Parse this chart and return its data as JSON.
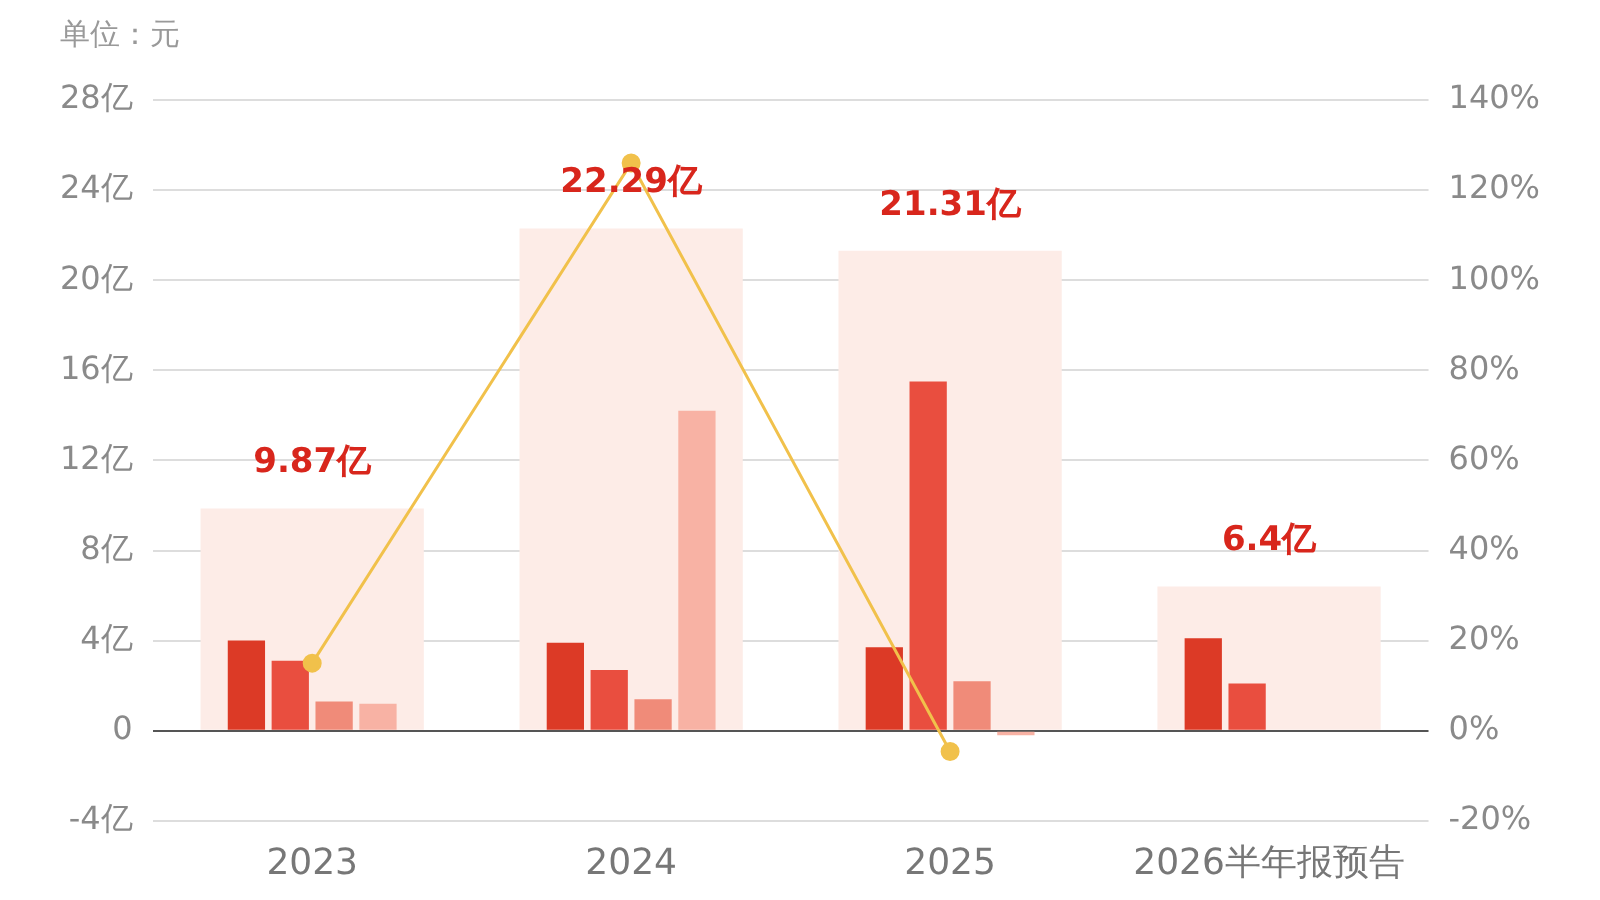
{
  "chart_data": {
    "type": "bar",
    "categories": [
      "2023",
      "2024",
      "2025",
      "2026半年报预告"
    ],
    "series": [
      {
        "color": "#fdece7",
        "values": [
          9.87,
          22.29,
          21.31,
          6.4
        ],
        "value_labels": [
          "9.87亿",
          "22.29亿",
          "21.31亿",
          "6.4亿"
        ]
      },
      {
        "color": "#dc3a26",
        "values": [
          4.0,
          3.9,
          3.7,
          4.1
        ]
      },
      {
        "color": "#e94e3f",
        "values": [
          3.1,
          2.7,
          15.5,
          2.1
        ]
      },
      {
        "color": "#f08b79",
        "values": [
          1.3,
          1.4,
          2.2,
          null
        ]
      },
      {
        "color": "#f8b2a4",
        "values": [
          1.2,
          14.2,
          -0.2,
          null
        ]
      },
      {
        "type": "line",
        "axis": "y2",
        "color": "#f1c14b",
        "values": [
          15,
          126,
          -4.6,
          null
        ]
      }
    ],
    "ylim": [
      -4,
      28
    ],
    "yticks": [
      {
        "value": -4,
        "label": "-4亿"
      },
      {
        "value": 0,
        "label": "0"
      },
      {
        "value": 4,
        "label": "4亿"
      },
      {
        "value": 8,
        "label": "8亿"
      },
      {
        "value": 12,
        "label": "12亿"
      },
      {
        "value": 16,
        "label": "16亿"
      },
      {
        "value": 20,
        "label": "20亿"
      },
      {
        "value": 24,
        "label": "24亿"
      },
      {
        "value": 28,
        "label": "28亿"
      }
    ],
    "y2lim": [
      -20,
      140
    ],
    "y2ticks": [
      {
        "value": -20,
        "label": "-20%"
      },
      {
        "value": 0,
        "label": "0%"
      },
      {
        "value": 20,
        "label": "20%"
      },
      {
        "value": 40,
        "label": "40%"
      },
      {
        "value": 60,
        "label": "60%"
      },
      {
        "value": 80,
        "label": "80%"
      },
      {
        "value": 100,
        "label": "100%"
      },
      {
        "value": 120,
        "label": "120%"
      },
      {
        "value": 140,
        "label": "140%"
      }
    ],
    "grid": "y",
    "legend": false,
    "marker": "circle",
    "annotations": [
      "单位：元"
    ]
  }
}
